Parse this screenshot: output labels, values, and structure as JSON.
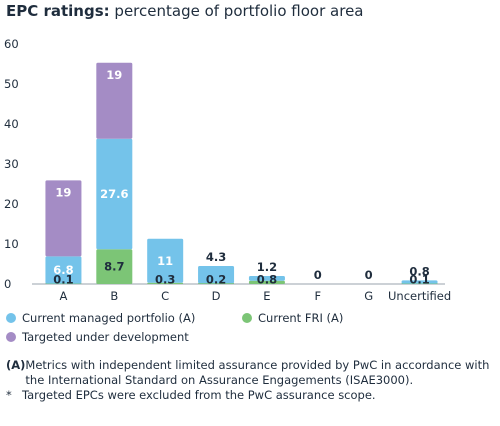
{
  "title": {
    "bold": "EPC ratings:",
    "rest": " percentage of portfolio floor area"
  },
  "colors": {
    "current_managed": "#74c3ea",
    "current_fri": "#7cc576",
    "targeted": "#a48cc5",
    "axis": "#9aa3ad",
    "text": "#1f2d3d"
  },
  "chart_data": {
    "type": "bar",
    "stacked": true,
    "categories": [
      "A",
      "B",
      "C",
      "D",
      "E",
      "F",
      "G",
      "Uncertified"
    ],
    "series": [
      {
        "name": "Current FRI (A)",
        "color": "#7cc576",
        "values": [
          0.1,
          8.7,
          0.3,
          0.2,
          0.8,
          0,
          0,
          0.1
        ]
      },
      {
        "name": "Current managed portfolio (A)",
        "color": "#74c3ea",
        "values": [
          6.8,
          27.6,
          11,
          4.3,
          1.2,
          0,
          0,
          0.8
        ]
      },
      {
        "name": "Targeted under development",
        "color": "#a48cc5",
        "values": [
          19,
          19,
          0,
          0,
          0,
          0,
          0,
          0
        ]
      }
    ],
    "labels": {
      "fri": [
        "0.1",
        "8.7",
        "0.3",
        "0.2",
        "0.8",
        "",
        "",
        "0.1"
      ],
      "managed": [
        "6.8",
        "27.6",
        "11",
        "4.3",
        "1.2",
        "0",
        "0",
        "0.8"
      ],
      "targeted": [
        "19",
        "19",
        "",
        "",
        "",
        "",
        "",
        ""
      ]
    },
    "yticks": [
      "0",
      "10",
      "20",
      "30",
      "40",
      "50",
      "60"
    ],
    "ylim": [
      0,
      60
    ],
    "grid": false
  },
  "legend": {
    "current_managed": "Current managed portfolio (A)",
    "current_fri": "Current FRI (A)",
    "targeted": "Targeted under development"
  },
  "notes": {
    "a_mark": "(A)",
    "a_text": "Metrics with independent limited assurance provided by PwC in accordance with the International Standard on Assurance Engagements (ISAE3000).",
    "star_mark": "*",
    "star_text": "Targeted EPCs were excluded from the PwC assurance scope."
  }
}
